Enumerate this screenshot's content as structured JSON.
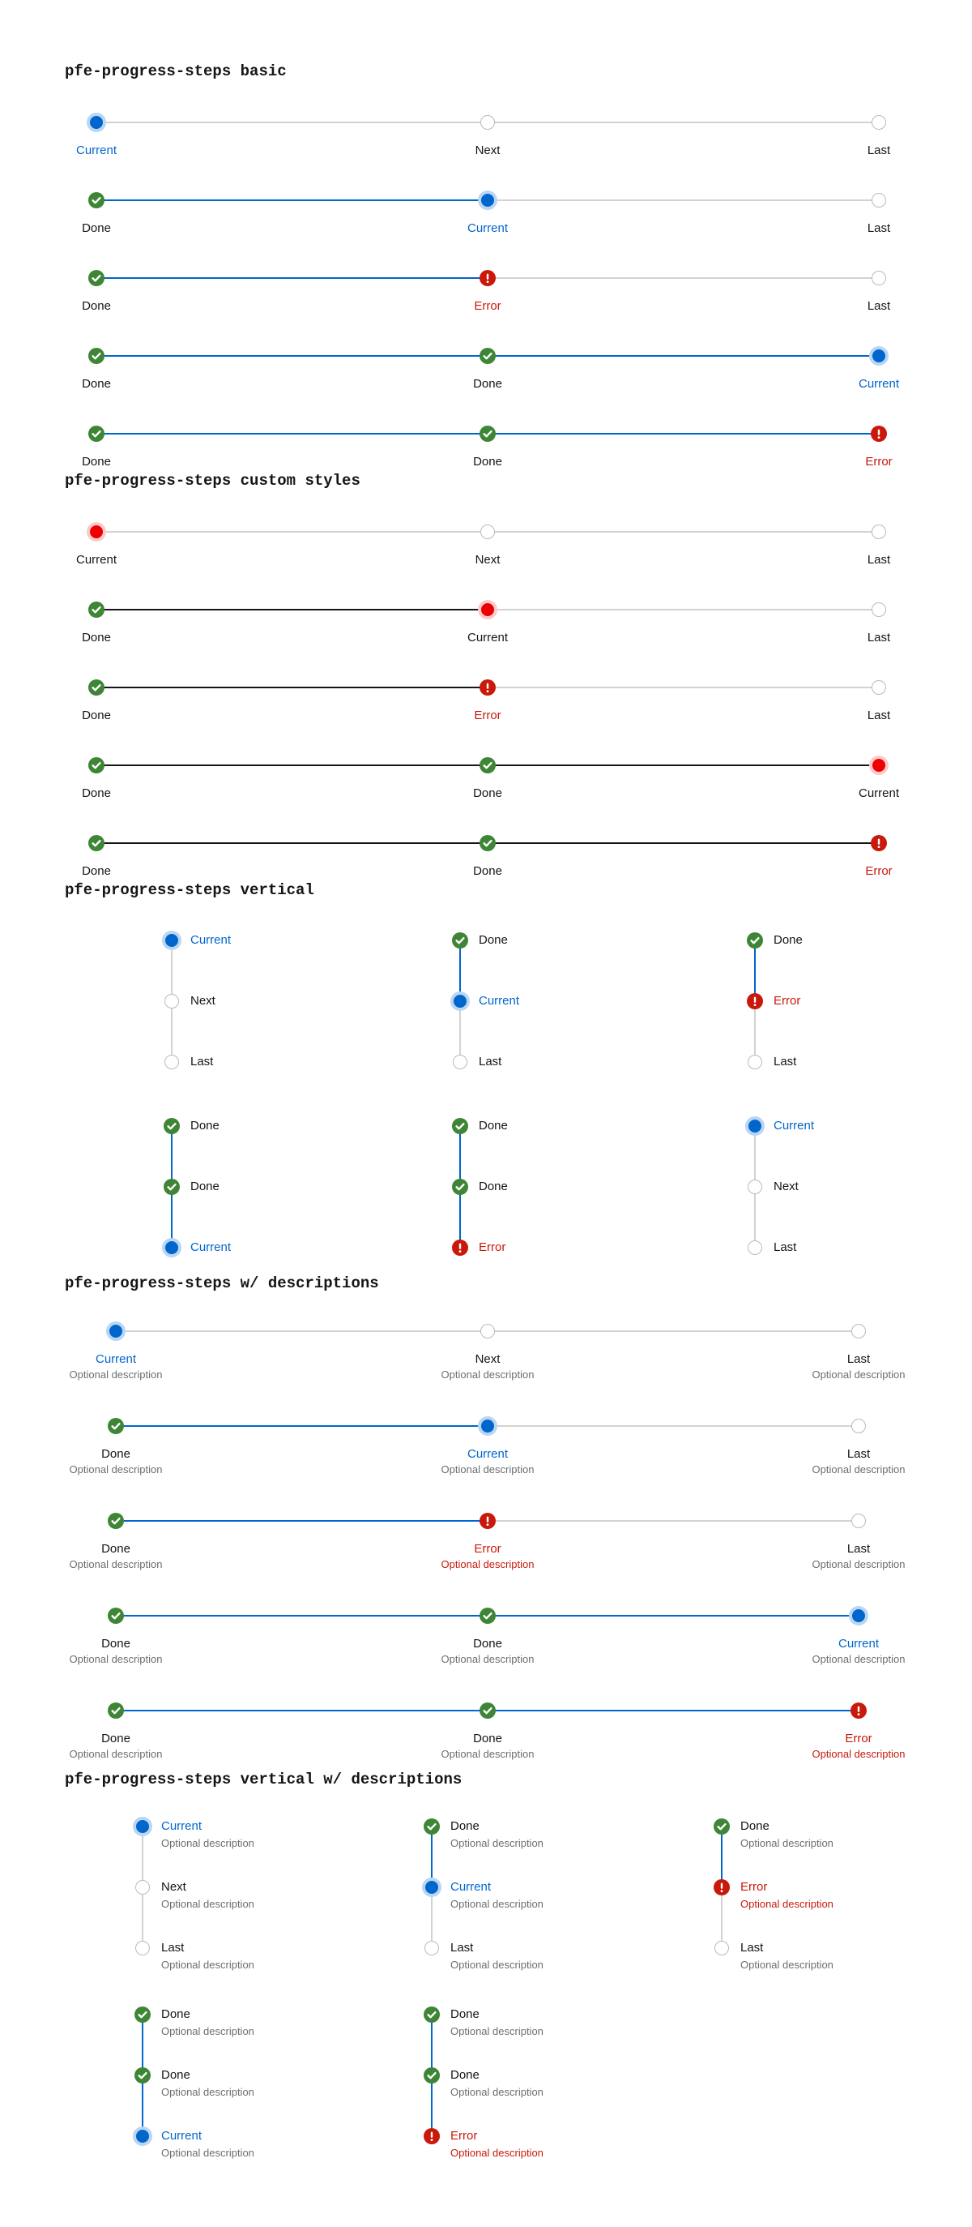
{
  "sections": [
    {
      "id": "basic",
      "title": "pfe-progress-steps basic",
      "orientation": "horizontal",
      "custom": false,
      "has_desc": false,
      "rows": [
        {
          "steps": [
            {
              "state": "current",
              "label": "Current"
            },
            {
              "state": "inactive",
              "label": "Next"
            },
            {
              "state": "inactive",
              "label": "Last"
            }
          ]
        },
        {
          "steps": [
            {
              "state": "done",
              "label": "Done"
            },
            {
              "state": "current",
              "label": "Current"
            },
            {
              "state": "inactive",
              "label": "Last"
            }
          ]
        },
        {
          "steps": [
            {
              "state": "done",
              "label": "Done"
            },
            {
              "state": "error",
              "label": "Error"
            },
            {
              "state": "inactive",
              "label": "Last"
            }
          ]
        },
        {
          "steps": [
            {
              "state": "done",
              "label": "Done"
            },
            {
              "state": "done",
              "label": "Done"
            },
            {
              "state": "current",
              "label": "Current"
            }
          ]
        },
        {
          "steps": [
            {
              "state": "done",
              "label": "Done"
            },
            {
              "state": "done",
              "label": "Done"
            },
            {
              "state": "error",
              "label": "Error"
            }
          ]
        }
      ]
    },
    {
      "id": "custom-styles",
      "title": "pfe-progress-steps custom styles",
      "orientation": "horizontal",
      "custom": true,
      "has_desc": false,
      "rows": [
        {
          "steps": [
            {
              "state": "current",
              "label": "Current"
            },
            {
              "state": "inactive",
              "label": "Next"
            },
            {
              "state": "inactive",
              "label": "Last"
            }
          ]
        },
        {
          "steps": [
            {
              "state": "done",
              "label": "Done"
            },
            {
              "state": "current",
              "label": "Current"
            },
            {
              "state": "inactive",
              "label": "Last"
            }
          ]
        },
        {
          "steps": [
            {
              "state": "done",
              "label": "Done"
            },
            {
              "state": "error",
              "label": "Error"
            },
            {
              "state": "inactive",
              "label": "Last"
            }
          ]
        },
        {
          "steps": [
            {
              "state": "done",
              "label": "Done"
            },
            {
              "state": "done",
              "label": "Done"
            },
            {
              "state": "current",
              "label": "Current"
            }
          ]
        },
        {
          "steps": [
            {
              "state": "done",
              "label": "Done"
            },
            {
              "state": "done",
              "label": "Done"
            },
            {
              "state": "error",
              "label": "Error"
            }
          ]
        }
      ]
    },
    {
      "id": "vertical",
      "title": "pfe-progress-steps vertical",
      "orientation": "vertical",
      "custom": false,
      "has_desc": false,
      "groups": [
        {
          "steps": [
            {
              "state": "current",
              "label": "Current"
            },
            {
              "state": "inactive",
              "label": "Next"
            },
            {
              "state": "inactive",
              "label": "Last"
            }
          ]
        },
        {
          "steps": [
            {
              "state": "done",
              "label": "Done"
            },
            {
              "state": "current",
              "label": "Current"
            },
            {
              "state": "inactive",
              "label": "Last"
            }
          ]
        },
        {
          "steps": [
            {
              "state": "done",
              "label": "Done"
            },
            {
              "state": "error",
              "label": "Error"
            },
            {
              "state": "inactive",
              "label": "Last"
            }
          ]
        },
        {
          "steps": [
            {
              "state": "done",
              "label": "Done"
            },
            {
              "state": "done",
              "label": "Done"
            },
            {
              "state": "current",
              "label": "Current"
            }
          ]
        },
        {
          "steps": [
            {
              "state": "done",
              "label": "Done"
            },
            {
              "state": "done",
              "label": "Done"
            },
            {
              "state": "error",
              "label": "Error"
            }
          ]
        },
        {
          "steps": [
            {
              "state": "current",
              "label": "Current"
            },
            {
              "state": "inactive",
              "label": "Next"
            },
            {
              "state": "inactive",
              "label": "Last"
            }
          ]
        }
      ]
    },
    {
      "id": "descriptions",
      "title": "pfe-progress-steps w/ descriptions",
      "orientation": "horizontal",
      "custom": false,
      "has_desc": true,
      "rows": [
        {
          "steps": [
            {
              "state": "current",
              "label": "Current",
              "description": "Optional description"
            },
            {
              "state": "inactive",
              "label": "Next",
              "description": "Optional description"
            },
            {
              "state": "inactive",
              "label": "Last",
              "description": "Optional description"
            }
          ]
        },
        {
          "steps": [
            {
              "state": "done",
              "label": "Done",
              "description": "Optional description"
            },
            {
              "state": "current",
              "label": "Current",
              "description": "Optional description"
            },
            {
              "state": "inactive",
              "label": "Last",
              "description": "Optional description"
            }
          ]
        },
        {
          "steps": [
            {
              "state": "done",
              "label": "Done",
              "description": "Optional description"
            },
            {
              "state": "error",
              "label": "Error",
              "description": "Optional description"
            },
            {
              "state": "inactive",
              "label": "Last",
              "description": "Optional description"
            }
          ]
        },
        {
          "steps": [
            {
              "state": "done",
              "label": "Done",
              "description": "Optional description"
            },
            {
              "state": "done",
              "label": "Done",
              "description": "Optional description"
            },
            {
              "state": "current",
              "label": "Current",
              "description": "Optional description"
            }
          ]
        },
        {
          "steps": [
            {
              "state": "done",
              "label": "Done",
              "description": "Optional description"
            },
            {
              "state": "done",
              "label": "Done",
              "description": "Optional description"
            },
            {
              "state": "error",
              "label": "Error",
              "description": "Optional description"
            }
          ]
        }
      ]
    },
    {
      "id": "vertical-descriptions",
      "title": "pfe-progress-steps vertical w/ descriptions",
      "orientation": "vertical",
      "custom": false,
      "has_desc": true,
      "groups": [
        {
          "steps": [
            {
              "state": "current",
              "label": "Current",
              "description": "Optional description"
            },
            {
              "state": "inactive",
              "label": "Next",
              "description": "Optional description"
            },
            {
              "state": "inactive",
              "label": "Last",
              "description": "Optional description"
            }
          ]
        },
        {
          "steps": [
            {
              "state": "done",
              "label": "Done",
              "description": "Optional description"
            },
            {
              "state": "current",
              "label": "Current",
              "description": "Optional description"
            },
            {
              "state": "inactive",
              "label": "Last",
              "description": "Optional description"
            }
          ]
        },
        {
          "steps": [
            {
              "state": "done",
              "label": "Done",
              "description": "Optional description"
            },
            {
              "state": "error",
              "label": "Error",
              "description": "Optional description"
            },
            {
              "state": "inactive",
              "label": "Last",
              "description": "Optional description"
            }
          ]
        },
        {
          "steps": [
            {
              "state": "done",
              "label": "Done",
              "description": "Optional description"
            },
            {
              "state": "done",
              "label": "Done",
              "description": "Optional description"
            },
            {
              "state": "current",
              "label": "Current",
              "description": "Optional description"
            }
          ]
        },
        {
          "steps": [
            {
              "state": "done",
              "label": "Done",
              "description": "Optional description"
            },
            {
              "state": "done",
              "label": "Done",
              "description": "Optional description"
            },
            {
              "state": "error",
              "label": "Error",
              "description": "Optional description"
            }
          ]
        }
      ]
    }
  ],
  "icons": {
    "done": "check-circle-icon",
    "error": "exclamation-circle-icon",
    "current": "current-dot-icon",
    "inactive": "empty-circle-icon"
  },
  "colors": {
    "current": "#0066cc",
    "done": "#3e8635",
    "error": "#c9190b",
    "inactive_border": "#b8bbbe",
    "track": "#d2d2d2",
    "custom_current": "#ee0000",
    "custom_track": "#151515"
  }
}
